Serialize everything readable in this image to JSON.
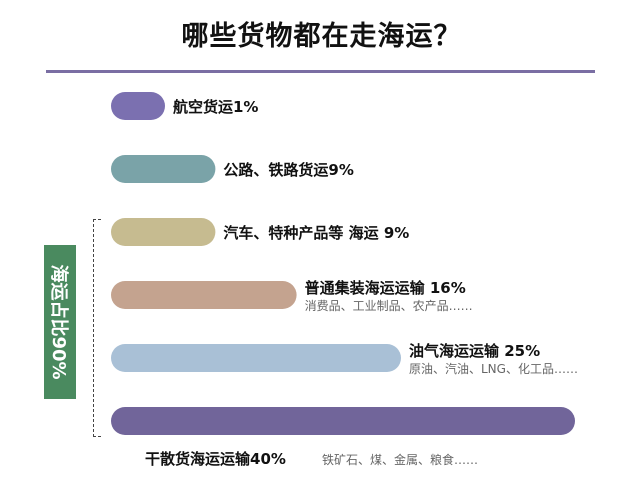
{
  "chart_data": {
    "type": "bar",
    "orientation": "horizontal",
    "title": "哪些货物都在走海运？",
    "xlim": [
      0,
      40
    ],
    "grid": false,
    "bars": [
      {
        "label": "航空货运1%",
        "value": 1,
        "color": "#7b70b0",
        "sub": ""
      },
      {
        "label": "公路、铁路货运9%",
        "value": 9,
        "color": "#7aa3a8",
        "sub": ""
      },
      {
        "label": "汽车、特种产品等 海运 9%",
        "value": 9,
        "color": "#c6bb90",
        "sub": ""
      },
      {
        "label": "普通集装海运运输 16%",
        "value": 16,
        "color": "#c4a38f",
        "sub": "消费品、工业制品、农产品……"
      },
      {
        "label": "油气海运运输 25%",
        "value": 25,
        "color": "#a9c0d6",
        "sub": "原油、汽油、LNG、化工品……"
      },
      {
        "label": "干散货海运运输40%",
        "value": 40,
        "color": "#71659a",
        "sub": "铁矿石、煤、金属、粮食……"
      }
    ],
    "group_annotation": "海运占比90%"
  }
}
